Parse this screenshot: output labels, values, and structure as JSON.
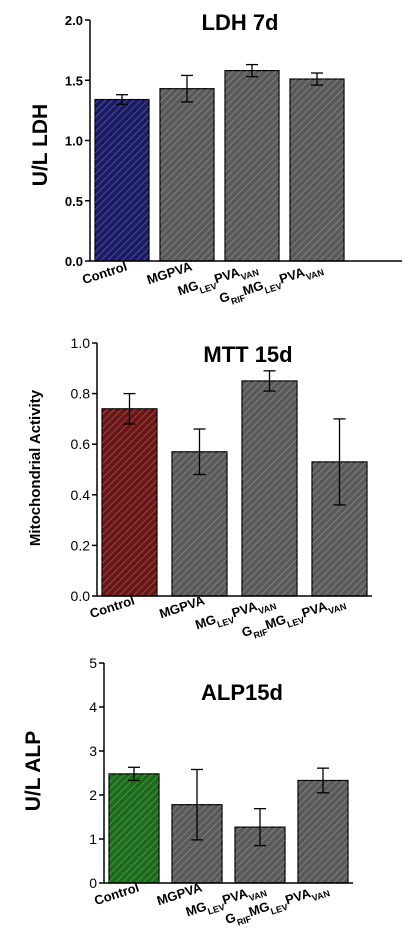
{
  "chart_data": [
    {
      "type": "bar",
      "title": "LDH 7d",
      "ylabel": "U/L LDH",
      "xlabel": "",
      "ylim": [
        0,
        2.0
      ],
      "yticks": [
        "0.0",
        "0.5",
        "1.0",
        "1.5",
        "2.0"
      ],
      "categories": [
        "Control",
        "MGPVA",
        "MG_LEV PVA_VAN",
        "G_RIF MG_LEV PVA_VAN"
      ],
      "category_labels": [
        [
          {
            "t": "Control",
            "sub": false
          }
        ],
        [
          {
            "t": "MGPVA",
            "sub": false
          }
        ],
        [
          {
            "t": "MG",
            "sub": false
          },
          {
            "t": "LEV",
            "sub": true
          },
          {
            "t": "PVA",
            "sub": false
          },
          {
            "t": "VAN",
            "sub": true
          }
        ],
        [
          {
            "t": "G",
            "sub": false
          },
          {
            "t": "RIF",
            "sub": true
          },
          {
            "t": "MG",
            "sub": false
          },
          {
            "t": "LEV",
            "sub": true
          },
          {
            "t": "PVA",
            "sub": false
          },
          {
            "t": "VAN",
            "sub": true
          }
        ]
      ],
      "values": [
        1.34,
        1.43,
        1.58,
        1.51
      ],
      "errors": [
        0.04,
        0.11,
        0.05,
        0.05
      ],
      "colors": [
        "#1a1a66",
        "#5a5a5a",
        "#5a5a5a",
        "#5a5a5a"
      ],
      "grid": false
    },
    {
      "type": "bar",
      "title": "MTT 15d",
      "ylabel": "Mitochondrial Activity",
      "xlabel": "",
      "ylim": [
        0,
        1.0
      ],
      "yticks": [
        "0.0",
        "0.2",
        "0.4",
        "0.6",
        "0.8",
        "1.0"
      ],
      "categories": [
        "Control",
        "MGPVA",
        "MG_LEV PVA_VAN",
        "G_RIF MG_LEV PVA_VAN"
      ],
      "category_labels": [
        [
          {
            "t": "Control",
            "sub": false
          }
        ],
        [
          {
            "t": "MGPVA",
            "sub": false
          }
        ],
        [
          {
            "t": "MG",
            "sub": false
          },
          {
            "t": "LEV",
            "sub": true
          },
          {
            "t": "PVA",
            "sub": false
          },
          {
            "t": "VAN",
            "sub": true
          }
        ],
        [
          {
            "t": "G",
            "sub": false
          },
          {
            "t": "RIF",
            "sub": true
          },
          {
            "t": "MG",
            "sub": false
          },
          {
            "t": "LEV",
            "sub": true
          },
          {
            "t": "PVA",
            "sub": false
          },
          {
            "t": "VAN",
            "sub": true
          }
        ]
      ],
      "values": [
        0.74,
        0.57,
        0.85,
        0.53
      ],
      "errors": [
        0.06,
        0.09,
        0.04,
        0.17
      ],
      "colors": [
        "#6b1515",
        "#5a5a5a",
        "#5a5a5a",
        "#5a5a5a"
      ],
      "grid": false
    },
    {
      "type": "bar",
      "title": "ALP15d",
      "ylabel": "U/L ALP",
      "xlabel": "",
      "ylim": [
        0,
        5
      ],
      "yticks": [
        "0",
        "1",
        "2",
        "3",
        "4",
        "5"
      ],
      "categories": [
        "Control",
        "MGPVA",
        "MG_LEV PVA_VAN",
        "G_RIF MG_LEV PVA_VAN"
      ],
      "category_labels": [
        [
          {
            "t": "Control",
            "sub": false
          }
        ],
        [
          {
            "t": "MGPVA",
            "sub": false
          }
        ],
        [
          {
            "t": "MG",
            "sub": false
          },
          {
            "t": "LEV",
            "sub": true
          },
          {
            "t": "PVA",
            "sub": false
          },
          {
            "t": "VAN",
            "sub": true
          }
        ],
        [
          {
            "t": "G",
            "sub": false
          },
          {
            "t": "RIF",
            "sub": true
          },
          {
            "t": "MG",
            "sub": false
          },
          {
            "t": "LEV",
            "sub": true
          },
          {
            "t": "PVA",
            "sub": false
          },
          {
            "t": "VAN",
            "sub": true
          }
        ]
      ],
      "values": [
        2.48,
        1.78,
        1.27,
        2.33
      ],
      "errors": [
        0.15,
        0.8,
        0.42,
        0.28
      ],
      "colors": [
        "#1a6b1a",
        "#5a5a5a",
        "#5a5a5a",
        "#5a5a5a"
      ],
      "grid": false
    }
  ]
}
